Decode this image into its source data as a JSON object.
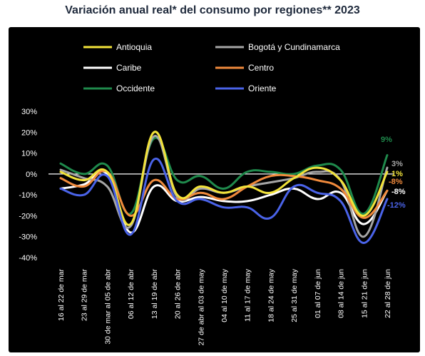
{
  "chart_data": {
    "type": "line",
    "title": "Variación anual real* del consumo por regiones** 2023",
    "xlabel": "",
    "ylabel": "",
    "ylim": [
      -40,
      30
    ],
    "yticks": [
      "30%",
      "20%",
      "10%",
      "0%",
      "-10%",
      "-20%",
      "-30%",
      "-40%"
    ],
    "grid": false,
    "legend_position": "top",
    "categories": [
      "16 al 22 de mar",
      "23 al 29 de mar",
      "30 de mar al 05 de abr",
      "06 al 12 de abr",
      "13 al 19 de abr",
      "20 al 26 de abr",
      "27 de abr al 03 de may",
      "04 al 10 de may",
      "11 al 17 de may",
      "18 al 24 de may",
      "25 al 31 de may",
      "01 al 07 de jun",
      "08 al 14 de jun",
      "15 al 21 de jun",
      "22 al 28 de jun"
    ],
    "series": [
      {
        "name": "Antioquia",
        "color": "#f2e33a",
        "values": [
          1,
          -3,
          1,
          -24,
          20,
          -10,
          -6,
          -9,
          -6,
          -9,
          -2,
          3,
          -3,
          -20,
          1
        ],
        "end_label": "1%"
      },
      {
        "name": "Bogotá y Cundinamarca",
        "color": "#a6a6a6",
        "values": [
          2,
          -2,
          -6,
          -25,
          18,
          -11,
          -7,
          -9,
          -6,
          -4,
          -2,
          1,
          -3,
          -30,
          3
        ],
        "end_label": "3%"
      },
      {
        "name": "Caribe",
        "color": "#ffffff",
        "values": [
          -7,
          -5,
          0,
          -28,
          -6,
          -13,
          -11,
          -13,
          -13,
          -10,
          -7,
          -12,
          -9,
          -24,
          -8
        ],
        "end_label": "-8%"
      },
      {
        "name": "Centro",
        "color": "#f08a3c",
        "values": [
          -2,
          -6,
          1,
          -20,
          -3,
          -12,
          -9,
          -12,
          -6,
          -1,
          -1,
          -3,
          -7,
          -21,
          -8
        ],
        "end_label": "-8%"
      },
      {
        "name": "Occidente",
        "color": "#1f8a4c",
        "values": [
          5,
          0,
          4,
          -19,
          17,
          -3,
          -1,
          -7,
          1,
          1,
          0,
          4,
          2,
          -19,
          9
        ],
        "end_label": "9%"
      },
      {
        "name": "Oriente",
        "color": "#4a63e8",
        "values": [
          -7,
          -10,
          -1,
          -29,
          7,
          -13,
          -12,
          -16,
          -16,
          -21,
          -6,
          -9,
          -13,
          -33,
          -12
        ],
        "end_label": "-12%"
      }
    ]
  }
}
